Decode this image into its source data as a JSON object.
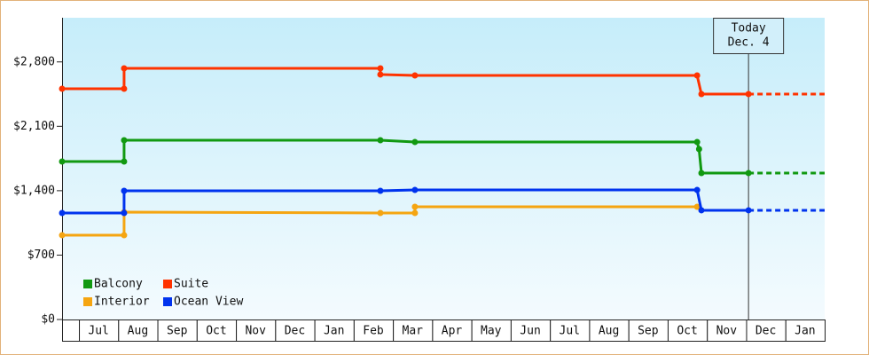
{
  "chart_data": {
    "type": "line",
    "step": true,
    "xlim": [
      -0.43,
      19
    ],
    "categories": [
      null,
      "Jul",
      "Aug",
      "Sep",
      "Oct",
      "Nov",
      "Dec",
      "Jan",
      "Feb",
      "Mar",
      "Apr",
      "May",
      "Jun",
      "Jul",
      "Aug",
      "Sep",
      "Oct",
      "Nov",
      "Dec",
      "Jan"
    ],
    "ylim": [
      0,
      3280
    ],
    "yticks": [
      {
        "value": 0,
        "label": "$0"
      },
      {
        "value": 700,
        "label": "$700"
      },
      {
        "value": 1400,
        "label": "$1,400"
      },
      {
        "value": 2100,
        "label": "$2,100"
      },
      {
        "value": 2800,
        "label": "$2,800"
      }
    ],
    "today": {
      "label": "Today",
      "date": "Dec. 4",
      "x": 17.06
    },
    "projection": "dashed",
    "legend": "bottom-left",
    "series": [
      {
        "name": "Balcony",
        "color": "#119911",
        "x": [
          -0.43,
          1.15,
          1.15,
          7.68,
          8.56,
          15.75,
          15.8,
          15.86,
          17.06
        ],
        "values": [
          1717,
          1717,
          1949,
          1949,
          1929,
          1929,
          1852,
          1592,
          1592
        ]
      },
      {
        "name": "Suite",
        "color": "#ff3300",
        "x": [
          -0.43,
          1.15,
          1.15,
          7.68,
          7.68,
          8.56,
          15.75,
          15.86,
          17.06
        ],
        "values": [
          2508,
          2508,
          2730,
          2730,
          2663,
          2653,
          2653,
          2450,
          2450
        ]
      },
      {
        "name": "Interior",
        "color": "#f5a511",
        "x": [
          -0.43,
          1.15,
          1.15,
          7.68,
          8.56,
          8.56,
          15.75
        ],
        "values": [
          916,
          916,
          1167,
          1158,
          1158,
          1225,
          1225
        ]
      },
      {
        "name": "Ocean View",
        "color": "#0033ee",
        "x": [
          -0.43,
          1.15,
          1.15,
          7.68,
          8.56,
          15.75,
          15.86,
          17.06
        ],
        "values": [
          1158,
          1158,
          1399,
          1399,
          1408,
          1408,
          1187,
          1187
        ]
      }
    ]
  }
}
